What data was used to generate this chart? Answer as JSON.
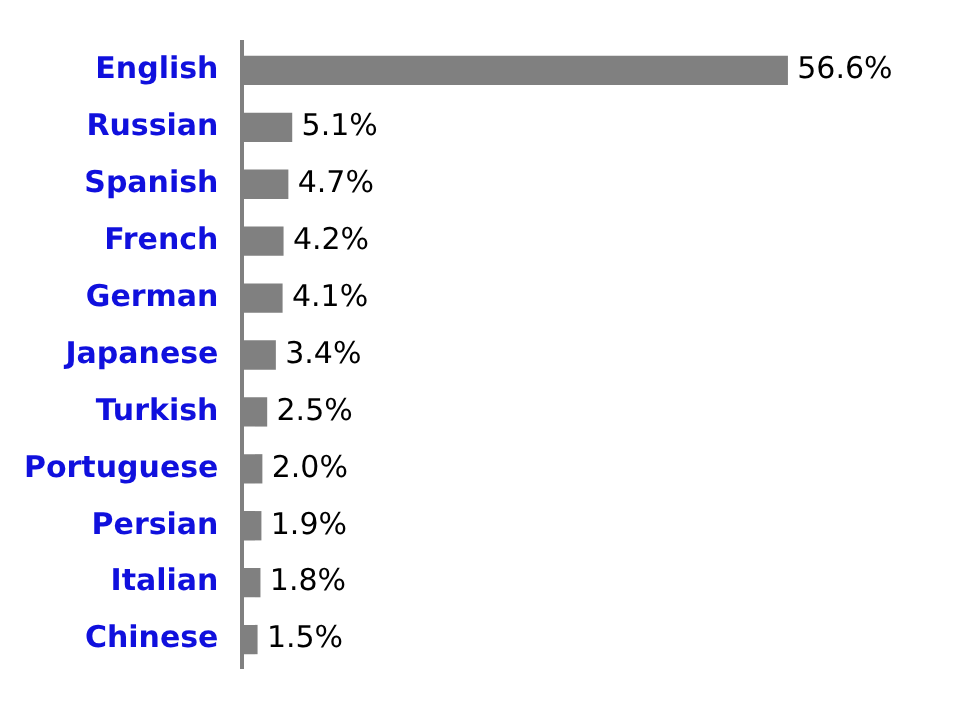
{
  "chart_data": {
    "type": "bar",
    "orientation": "horizontal",
    "categories": [
      "English",
      "Russian",
      "Spanish",
      "French",
      "German",
      "Japanese",
      "Turkish",
      "Portuguese",
      "Persian",
      "Italian",
      "Chinese"
    ],
    "values": [
      56.6,
      5.1,
      4.7,
      4.2,
      4.1,
      3.4,
      2.5,
      2.0,
      1.9,
      1.8,
      1.5
    ],
    "value_labels": [
      "56.6%",
      "5.1%",
      "4.7%",
      "4.2%",
      "4.1%",
      "3.4%",
      "2.5%",
      "2.0%",
      "1.9%",
      "1.8%",
      "1.5%"
    ],
    "color": "#808080",
    "grid": false,
    "legend": false
  }
}
